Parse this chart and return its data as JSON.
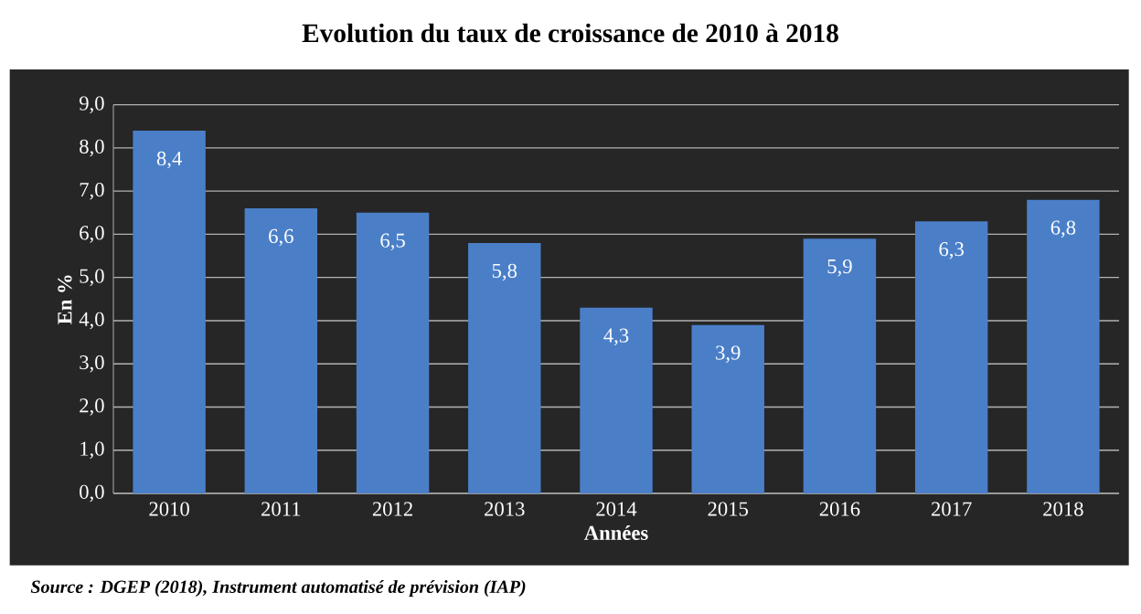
{
  "chart_data": {
    "type": "bar",
    "title": "Evolution du taux de croissance de 2010 à 2018",
    "xlabel": "Années",
    "ylabel": "En %",
    "categories": [
      "2010",
      "2011",
      "2012",
      "2013",
      "2014",
      "2015",
      "2016",
      "2017",
      "2018"
    ],
    "values": [
      8.4,
      6.6,
      6.5,
      5.8,
      4.3,
      3.9,
      5.9,
      6.3,
      6.8
    ],
    "value_labels": [
      "8,4",
      "6,6",
      "6,5",
      "5,8",
      "4,3",
      "3,9",
      "5,9",
      "6,3",
      "6,8"
    ],
    "color": "#4a7fc8",
    "ylim": [
      0,
      9
    ],
    "yticks": [
      {
        "value": 0,
        "label": "0,0"
      },
      {
        "value": 1,
        "label": "1,0"
      },
      {
        "value": 2,
        "label": "2,0"
      },
      {
        "value": 3,
        "label": "3,0"
      },
      {
        "value": 4,
        "label": "4,0"
      },
      {
        "value": 5,
        "label": "5,0"
      },
      {
        "value": 6,
        "label": "6,0"
      },
      {
        "value": 7,
        "label": "7,0"
      },
      {
        "value": 8,
        "label": "8,0"
      },
      {
        "value": 9,
        "label": "9,0"
      }
    ],
    "grid": true,
    "annotations": [
      "Source : DGEP (2018), Instrument automatisé de prévision (IAP)"
    ]
  }
}
